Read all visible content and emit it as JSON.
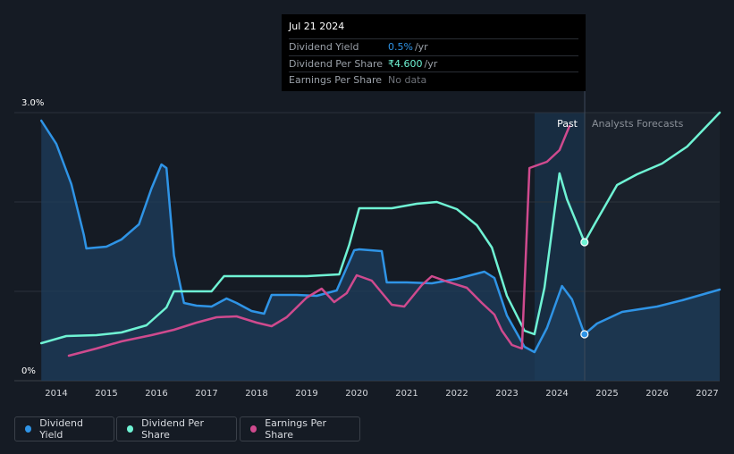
{
  "tooltip": {
    "date": "Jul 21 2024",
    "rows": [
      {
        "label": "Dividend Yield",
        "value": "0.5%",
        "unit": "/yr",
        "color": "#2f94e6"
      },
      {
        "label": "Dividend Per Share",
        "value": "₹4.600",
        "unit": "/yr",
        "color": "#6ff3d4"
      },
      {
        "label": "Earnings Per Share",
        "value": "No data",
        "unit": "",
        "color": "#6d7178"
      }
    ]
  },
  "regions": {
    "past": "Past",
    "forecast": "Analysts Forecasts"
  },
  "legend": [
    {
      "label": "Dividend Yield",
      "color": "#2f94e6"
    },
    {
      "label": "Dividend Per Share",
      "color": "#6ff3d4"
    },
    {
      "label": "Earnings Per Share",
      "color": "#cf4a8e"
    }
  ],
  "chart_data": {
    "type": "line",
    "x_ticks": [
      "2014",
      "2015",
      "2016",
      "2017",
      "2018",
      "2019",
      "2020",
      "2021",
      "2022",
      "2023",
      "2024",
      "2025",
      "2026",
      "2027"
    ],
    "y_ticks": [
      "3.0%",
      "0%"
    ],
    "ylim": [
      0,
      3.0
    ],
    "ylim_units": "percent (Dividend Yield axis)",
    "grid": true,
    "highlight_date": 2024.55,
    "series": [
      {
        "name": "Dividend Yield",
        "color": "#2f94e6",
        "fill": true,
        "axis": "percent",
        "points": [
          [
            2013.7,
            2.91
          ],
          [
            2014.0,
            2.65
          ],
          [
            2014.3,
            2.2
          ],
          [
            2014.55,
            1.63
          ],
          [
            2014.6,
            1.48
          ],
          [
            2015.0,
            1.5
          ],
          [
            2015.3,
            1.58
          ],
          [
            2015.65,
            1.75
          ],
          [
            2015.9,
            2.15
          ],
          [
            2016.1,
            2.42
          ],
          [
            2016.2,
            2.38
          ],
          [
            2016.35,
            1.4
          ],
          [
            2016.55,
            0.87
          ],
          [
            2016.8,
            0.84
          ],
          [
            2017.1,
            0.83
          ],
          [
            2017.4,
            0.92
          ],
          [
            2017.6,
            0.87
          ],
          [
            2017.9,
            0.78
          ],
          [
            2018.15,
            0.75
          ],
          [
            2018.3,
            0.96
          ],
          [
            2018.8,
            0.96
          ],
          [
            2019.2,
            0.95
          ],
          [
            2019.6,
            1.01
          ],
          [
            2019.95,
            1.46
          ],
          [
            2020.05,
            1.47
          ],
          [
            2020.5,
            1.45
          ],
          [
            2020.6,
            1.1
          ],
          [
            2021.0,
            1.1
          ],
          [
            2021.5,
            1.09
          ],
          [
            2022.0,
            1.14
          ],
          [
            2022.55,
            1.22
          ],
          [
            2022.75,
            1.15
          ],
          [
            2023.0,
            0.73
          ],
          [
            2023.35,
            0.38
          ],
          [
            2023.55,
            0.32
          ],
          [
            2023.8,
            0.59
          ],
          [
            2024.1,
            1.06
          ],
          [
            2024.3,
            0.91
          ],
          [
            2024.55,
            0.52
          ],
          [
            2024.8,
            0.64
          ],
          [
            2025.3,
            0.77
          ],
          [
            2026.0,
            0.83
          ],
          [
            2026.5,
            0.9
          ],
          [
            2027.25,
            1.02
          ]
        ]
      },
      {
        "name": "Dividend Per Share",
        "color": "#6ff3d4",
        "fill": false,
        "axis": "separate unlabeled scale (shown on percent grid)",
        "points": [
          [
            2013.7,
            0.42
          ],
          [
            2014.2,
            0.5
          ],
          [
            2014.8,
            0.51
          ],
          [
            2015.3,
            0.54
          ],
          [
            2015.8,
            0.62
          ],
          [
            2016.2,
            0.82
          ],
          [
            2016.35,
            1.0
          ],
          [
            2017.1,
            1.0
          ],
          [
            2017.35,
            1.17
          ],
          [
            2018.2,
            1.17
          ],
          [
            2019.0,
            1.17
          ],
          [
            2019.65,
            1.19
          ],
          [
            2019.85,
            1.52
          ],
          [
            2020.05,
            1.93
          ],
          [
            2020.7,
            1.93
          ],
          [
            2021.2,
            1.98
          ],
          [
            2021.6,
            2.0
          ],
          [
            2022.0,
            1.92
          ],
          [
            2022.4,
            1.74
          ],
          [
            2022.7,
            1.49
          ],
          [
            2023.0,
            0.95
          ],
          [
            2023.35,
            0.56
          ],
          [
            2023.55,
            0.52
          ],
          [
            2023.75,
            1.04
          ],
          [
            2024.05,
            2.32
          ],
          [
            2024.2,
            2.03
          ],
          [
            2024.55,
            1.55
          ],
          [
            2024.75,
            1.75
          ],
          [
            2025.2,
            2.19
          ],
          [
            2025.6,
            2.31
          ],
          [
            2026.1,
            2.43
          ],
          [
            2026.6,
            2.62
          ],
          [
            2027.25,
            3.0
          ]
        ]
      },
      {
        "name": "Earnings Per Share",
        "color": "#cf4a8e",
        "fill": false,
        "axis": "separate unlabeled scale (shown on percent grid)",
        "points": [
          [
            2014.25,
            0.28
          ],
          [
            2014.8,
            0.36
          ],
          [
            2015.3,
            0.44
          ],
          [
            2015.9,
            0.51
          ],
          [
            2016.35,
            0.57
          ],
          [
            2016.8,
            0.65
          ],
          [
            2017.2,
            0.71
          ],
          [
            2017.6,
            0.72
          ],
          [
            2018.0,
            0.65
          ],
          [
            2018.3,
            0.61
          ],
          [
            2018.6,
            0.71
          ],
          [
            2019.0,
            0.93
          ],
          [
            2019.3,
            1.03
          ],
          [
            2019.55,
            0.88
          ],
          [
            2019.8,
            0.98
          ],
          [
            2020.0,
            1.18
          ],
          [
            2020.3,
            1.12
          ],
          [
            2020.7,
            0.85
          ],
          [
            2020.95,
            0.83
          ],
          [
            2021.3,
            1.07
          ],
          [
            2021.5,
            1.17
          ],
          [
            2021.8,
            1.11
          ],
          [
            2022.2,
            1.04
          ],
          [
            2022.5,
            0.87
          ],
          [
            2022.75,
            0.74
          ],
          [
            2022.9,
            0.56
          ],
          [
            2023.1,
            0.4
          ],
          [
            2023.3,
            0.36
          ],
          [
            2023.45,
            2.38
          ],
          [
            2023.8,
            2.45
          ],
          [
            2024.05,
            2.58
          ],
          [
            2024.25,
            2.85
          ]
        ]
      }
    ]
  }
}
